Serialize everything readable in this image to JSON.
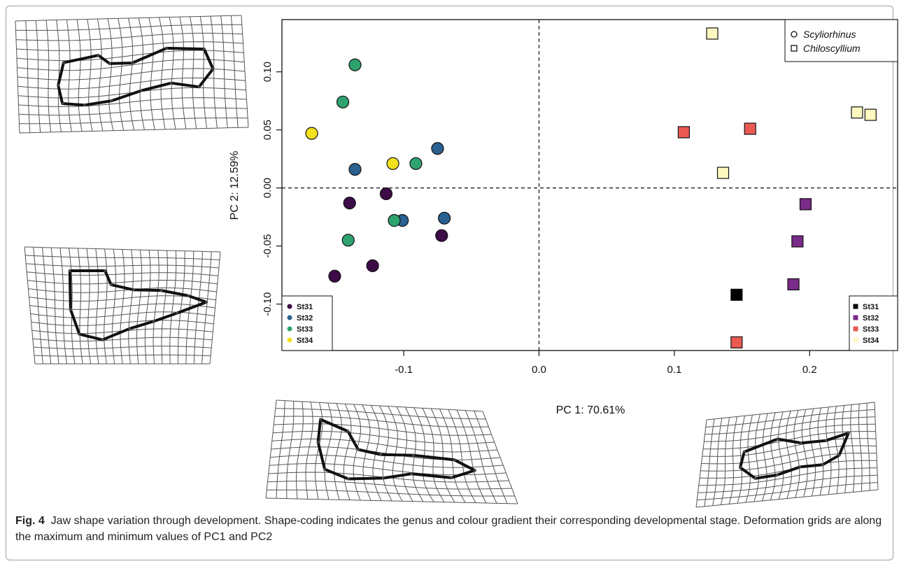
{
  "chart_data": {
    "type": "scatter",
    "xlabel": "PC 1: 70.61%",
    "ylabel": "PC 2: 12.59%",
    "xlim": [
      -0.19,
      0.265
    ],
    "ylim": [
      -0.14,
      0.145
    ],
    "xticks": [
      "-0.1",
      "0.0",
      "0.1",
      "0.2"
    ],
    "yticks": [
      "-0.10",
      "-0.05",
      "0.00",
      "0.05",
      "0.10"
    ],
    "xtick_values": [
      -0.1,
      0.0,
      0.1,
      0.2
    ],
    "ytick_values": [
      -0.1,
      -0.05,
      0.0,
      0.05,
      0.1
    ],
    "reference_lines": {
      "x": 0,
      "y": 0
    },
    "genus_legend": [
      {
        "label": "Scyliorhinus",
        "marker": "circle"
      },
      {
        "label": "Chiloscyllium",
        "marker": "square"
      }
    ],
    "stage_colors_scyliorhinus": {
      "St31": "#3d0b47",
      "St32": "#2a6190",
      "St33": "#2ea36d",
      "St34": "#f2e11c"
    },
    "stage_colors_chiloscyllium": {
      "St31": "#000000",
      "St32": "#7a2a88",
      "St33": "#ea5a52",
      "St34": "#fcf8c0"
    },
    "series": [
      {
        "name": "St31",
        "genus": "Scyliorhinus",
        "marker": "circle",
        "color": "#3d0b47",
        "points": [
          [
            -0.113,
            -0.005
          ],
          [
            -0.14,
            -0.013
          ],
          [
            -0.072,
            -0.041
          ],
          [
            -0.123,
            -0.067
          ],
          [
            -0.151,
            -0.076
          ]
        ]
      },
      {
        "name": "St32",
        "genus": "Scyliorhinus",
        "marker": "circle",
        "color": "#2a6190",
        "points": [
          [
            -0.136,
            0.016
          ],
          [
            -0.075,
            0.034
          ],
          [
            -0.07,
            -0.026
          ],
          [
            -0.101,
            -0.028
          ]
        ]
      },
      {
        "name": "St33",
        "genus": "Scyliorhinus",
        "marker": "circle",
        "color": "#2ea36d",
        "points": [
          [
            -0.136,
            0.106
          ],
          [
            -0.145,
            0.074
          ],
          [
            -0.091,
            0.021
          ],
          [
            -0.107,
            -0.028
          ],
          [
            -0.141,
            -0.045
          ]
        ]
      },
      {
        "name": "St34",
        "genus": "Scyliorhinus",
        "marker": "circle",
        "color": "#f2e11c",
        "points": [
          [
            -0.168,
            0.047
          ],
          [
            -0.108,
            0.021
          ]
        ]
      },
      {
        "name": "St31",
        "genus": "Chiloscyllium",
        "marker": "square",
        "color": "#000000",
        "points": [
          [
            0.146,
            -0.092
          ]
        ]
      },
      {
        "name": "St32",
        "genus": "Chiloscyllium",
        "marker": "square",
        "color": "#7a2a88",
        "points": [
          [
            0.197,
            -0.014
          ],
          [
            0.191,
            -0.046
          ],
          [
            0.188,
            -0.083
          ]
        ]
      },
      {
        "name": "St33",
        "genus": "Chiloscyllium",
        "marker": "square",
        "color": "#ea5a52",
        "points": [
          [
            0.107,
            0.048
          ],
          [
            0.156,
            0.051
          ],
          [
            0.146,
            -0.133
          ]
        ]
      },
      {
        "name": "St34",
        "genus": "Chiloscyllium",
        "marker": "square",
        "color": "#fcf8c0",
        "points": [
          [
            0.128,
            0.133
          ],
          [
            0.235,
            0.065
          ],
          [
            0.245,
            0.063
          ],
          [
            0.136,
            0.013
          ]
        ]
      }
    ]
  },
  "caption": {
    "label": "Fig. 4",
    "text": "Jaw shape variation through development. Shape-coding indicates the genus and colour gradient their corresponding developmental stage. Deformation grids are along the maximum and minimum values of PC1 and PC2"
  }
}
